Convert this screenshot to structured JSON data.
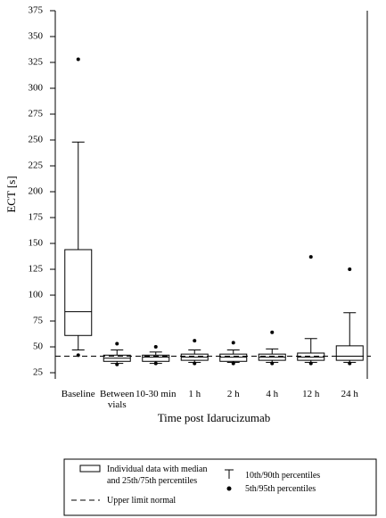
{
  "chart_data": {
    "type": "box",
    "y_label": "ECT [s]",
    "x_label": "Time post Idarucizumab",
    "categories": [
      "Baseline",
      "Between vials",
      "10-30 min",
      "1 h",
      "2 h",
      "4 h",
      "12 h",
      "24 h"
    ],
    "p5": [
      42,
      33,
      34,
      34,
      34,
      34,
      34,
      34
    ],
    "p10": [
      47,
      34,
      34,
      35,
      35,
      35,
      35,
      35
    ],
    "q1": [
      61,
      36,
      36,
      37,
      36,
      37,
      37,
      37
    ],
    "median": [
      84,
      39,
      40,
      40,
      40,
      40,
      40,
      41
    ],
    "q3": [
      144,
      42,
      42,
      43,
      43,
      43,
      44,
      51
    ],
    "p90": [
      248,
      47,
      45,
      47,
      47,
      48,
      58,
      83
    ],
    "p95": [
      328,
      53,
      50,
      56,
      54,
      64,
      137,
      125
    ],
    "reference_line": {
      "value": 41,
      "label": "Upper limit normal"
    },
    "color": "#000000",
    "ylim": [
      19,
      375
    ],
    "yticks": [
      25,
      50,
      75,
      100,
      125,
      150,
      175,
      200,
      225,
      250,
      275,
      300,
      325,
      350,
      375
    ],
    "legend": {
      "box": "Individual data with median and 25th/75th percentiles",
      "whisker": "10th/90th percentiles",
      "point": "5th/95th percentiles"
    }
  }
}
